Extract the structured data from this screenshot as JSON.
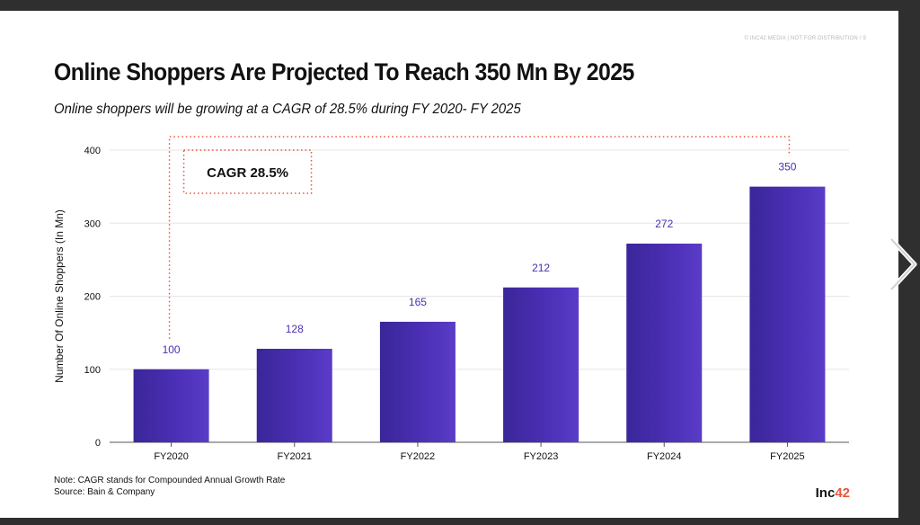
{
  "watermark": "© INC42 MEDIA | NOT FOR DISTRIBUTION / 9",
  "header": {
    "title": "Online Shoppers Are Projected To Reach 350 Mn By 2025",
    "subtitle": "Online shoppers will be growing at a CAGR of 28.5% during FY 2020- FY 2025"
  },
  "annotation": {
    "cagr_label": "CAGR 28.5%"
  },
  "footer": {
    "note": "Note: CAGR stands for Compounded Annual Growth Rate",
    "source": "Source: Bain & Company",
    "logo_main": "Inc",
    "logo_accent": "42"
  },
  "colors": {
    "bar": "#4b2fb4",
    "label": "#4b2fb4",
    "grid": "#e6e6e6",
    "annotation": "#e8553e"
  },
  "icons": {
    "next": "chevron-right-icon"
  },
  "chart_data": {
    "type": "bar",
    "categories": [
      "FY2020",
      "FY2021",
      "FY2022",
      "FY2023",
      "FY2024",
      "FY2025"
    ],
    "values": [
      100,
      128,
      165,
      212,
      272,
      350
    ],
    "data_labels": [
      "100",
      "128",
      "165",
      "212",
      "272",
      "350"
    ],
    "ylabel": "Number Of Online Shoppers (In Mn)",
    "xlabel": "",
    "ylim": [
      0,
      400
    ],
    "yticks": [
      0,
      100,
      200,
      300,
      400
    ],
    "grid": true,
    "legend": "none"
  }
}
